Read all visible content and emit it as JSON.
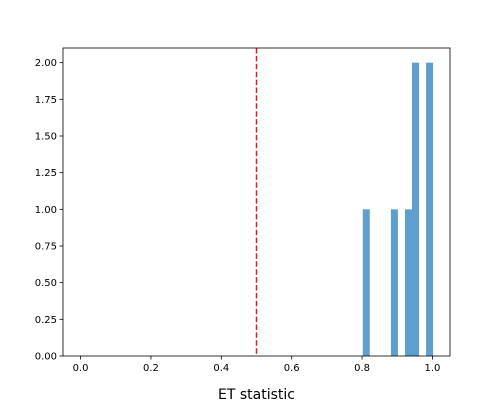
{
  "chart_data": {
    "type": "bar",
    "title": "",
    "xlabel": "ET statistic",
    "ylabel": "",
    "xlim": [
      -0.05,
      1.05
    ],
    "ylim": [
      0,
      2.1
    ],
    "grid": false,
    "legend": "none",
    "x_ticks": [
      "0.0",
      "0.2",
      "0.4",
      "0.6",
      "0.8",
      "1.0"
    ],
    "x_tick_values": [
      0.0,
      0.2,
      0.4,
      0.6,
      0.8,
      1.0
    ],
    "y_ticks": [
      "0.00",
      "0.25",
      "0.50",
      "0.75",
      "1.00",
      "1.25",
      "1.50",
      "1.75",
      "2.00"
    ],
    "y_tick_values": [
      0.0,
      0.25,
      0.5,
      0.75,
      1.0,
      1.25,
      1.5,
      1.75,
      2.0
    ],
    "bins": [
      {
        "x_start": 0.802,
        "x_end": 0.822,
        "count": 1
      },
      {
        "x_start": 0.882,
        "x_end": 0.902,
        "count": 1
      },
      {
        "x_start": 0.922,
        "x_end": 0.942,
        "count": 1
      },
      {
        "x_start": 0.942,
        "x_end": 0.962,
        "count": 2
      },
      {
        "x_start": 0.982,
        "x_end": 1.002,
        "count": 2
      }
    ],
    "reference_line": {
      "x": 0.5,
      "style": "dashed"
    },
    "colors": {
      "bars": "#5f9fcd",
      "reference_line": "#e41a1c",
      "axes": "#000000"
    }
  }
}
